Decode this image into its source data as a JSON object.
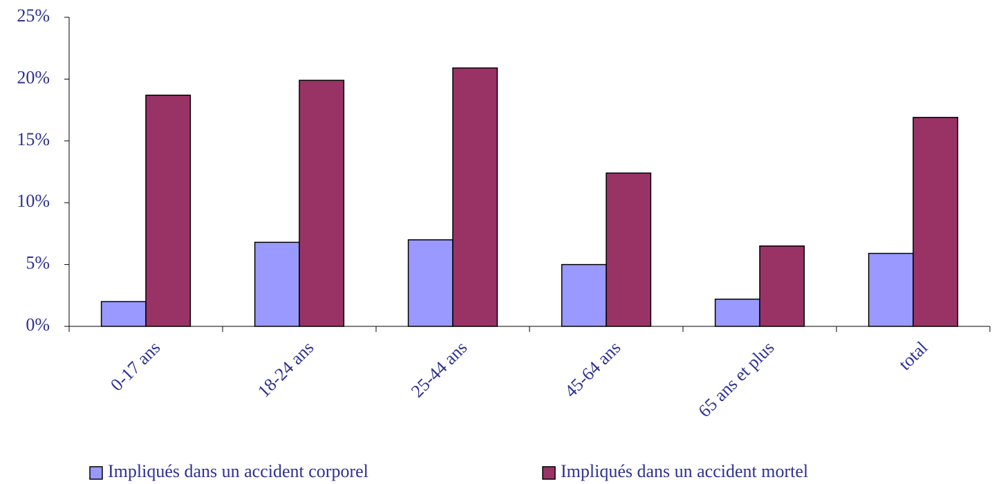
{
  "chart_data": {
    "type": "bar",
    "categories": [
      "0-17 ans",
      "18-24 ans",
      "25-44 ans",
      "45-64 ans",
      "65 ans et plus",
      "total"
    ],
    "series": [
      {
        "name": "Impliqués dans un accident corporel",
        "color": "#9999ff",
        "values": [
          2.0,
          6.8,
          7.0,
          5.0,
          2.2,
          5.9
        ]
      },
      {
        "name": "Impliqués dans un accident mortel",
        "color": "#993366",
        "values": [
          18.7,
          19.9,
          20.9,
          12.4,
          6.5,
          16.9
        ]
      }
    ],
    "ylim": [
      0,
      25
    ],
    "yticks": [
      {
        "value": 0,
        "label": "0%"
      },
      {
        "value": 5,
        "label": "5%"
      },
      {
        "value": 10,
        "label": "10%"
      },
      {
        "value": 15,
        "label": "15%"
      },
      {
        "value": 20,
        "label": "20%"
      },
      {
        "value": 25,
        "label": "25%"
      }
    ],
    "grid": false,
    "legend": "bottom"
  }
}
